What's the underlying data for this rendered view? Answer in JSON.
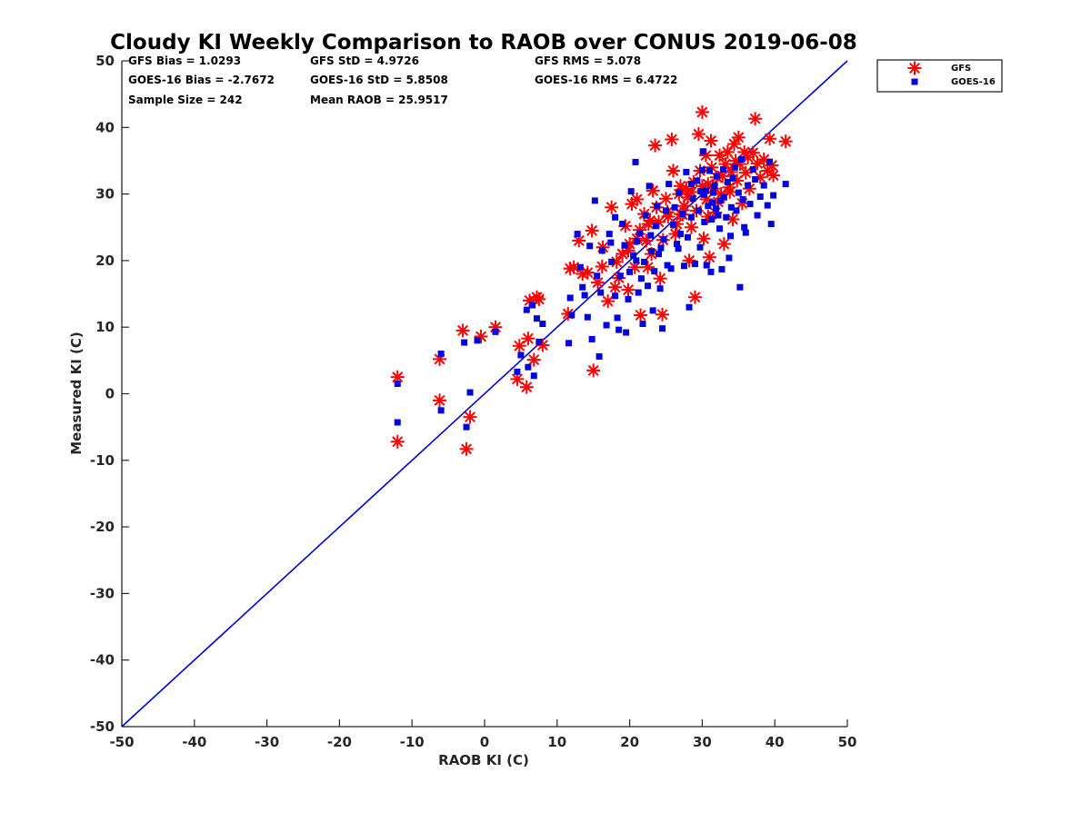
{
  "chart_data": {
    "type": "scatter",
    "title": "Cloudy KI Weekly Comparison to RAOB over CONUS 2019-06-08",
    "xlabel": "RAOB KI (C)",
    "ylabel": "Measured KI (C)",
    "xlim": [
      -50,
      50
    ],
    "ylim": [
      -50,
      50
    ],
    "xticks": [
      "-50",
      "-40",
      "-30",
      "-20",
      "-10",
      "0",
      "10",
      "20",
      "30",
      "40",
      "50"
    ],
    "yticks": [
      "-50",
      "-40",
      "-30",
      "-20",
      "-10",
      "0",
      "10",
      "20",
      "30",
      "40",
      "50"
    ],
    "grid": false,
    "legend_position": "top-right, outside plot",
    "stats": [
      "GFS Bias = 1.0293",
      "GFS StD = 4.9726",
      "GFS RMS = 5.078",
      "GOES-16 Bias = -2.7672",
      "GOES-16 StD = 5.8508",
      "GOES-16 RMS = 6.4722",
      "Sample Size = 242",
      "Mean RAOB = 25.9517"
    ],
    "reference_line": {
      "x": [
        -50,
        50
      ],
      "y": [
        -50,
        50
      ],
      "color": "#0000d6"
    },
    "series": [
      {
        "name": "GFS",
        "marker": "asterisk",
        "color": "#ff0000",
        "points": [
          [
            -12,
            2.5
          ],
          [
            -12,
            -7.2
          ],
          [
            -6.2,
            5.2
          ],
          [
            -6.2,
            -1
          ],
          [
            -3,
            9.5
          ],
          [
            -2.5,
            -8.3
          ],
          [
            -2,
            -3.5
          ],
          [
            -0.5,
            8.6
          ],
          [
            1.5,
            10
          ],
          [
            4.5,
            2.2
          ],
          [
            4.8,
            7.2
          ],
          [
            5.8,
            1
          ],
          [
            6,
            8.3
          ],
          [
            6.2,
            14
          ],
          [
            6.8,
            5.1
          ],
          [
            7.2,
            14.5
          ],
          [
            7.5,
            14.2
          ],
          [
            8,
            7.3
          ],
          [
            11.5,
            12
          ],
          [
            11.8,
            18.8
          ],
          [
            12.3,
            19
          ],
          [
            13,
            23
          ],
          [
            13.5,
            18
          ],
          [
            14.2,
            18.2
          ],
          [
            14.8,
            24.5
          ],
          [
            15,
            3.5
          ],
          [
            15.6,
            16.7
          ],
          [
            16.2,
            19.1
          ],
          [
            16.3,
            22
          ],
          [
            17,
            13.9
          ],
          [
            17.5,
            28
          ],
          [
            18,
            16
          ],
          [
            18.5,
            17.4
          ],
          [
            19,
            21
          ],
          [
            19.4,
            25.2
          ],
          [
            19.8,
            15.6
          ],
          [
            20,
            22.5
          ],
          [
            20.3,
            28.5
          ],
          [
            20.7,
            19
          ],
          [
            21,
            23.3
          ],
          [
            21,
            29.2
          ],
          [
            21.4,
            24.6
          ],
          [
            21.5,
            11.8
          ],
          [
            22,
            27
          ],
          [
            22.3,
            23
          ],
          [
            22.5,
            19
          ],
          [
            22.8,
            26
          ],
          [
            23,
            21
          ],
          [
            23.2,
            30.5
          ],
          [
            23.5,
            37.3
          ],
          [
            23.7,
            28
          ],
          [
            24,
            25.8
          ],
          [
            24.2,
            17.3
          ],
          [
            24.5,
            11.9
          ],
          [
            24.6,
            23.1
          ],
          [
            25,
            29.3
          ],
          [
            25.3,
            26.6
          ],
          [
            25.8,
            38.2
          ],
          [
            26,
            33.5
          ],
          [
            26.3,
            24
          ],
          [
            26.5,
            25.5
          ],
          [
            26.8,
            30
          ],
          [
            27,
            31.2
          ],
          [
            27.3,
            26.9
          ],
          [
            27.5,
            28.2
          ],
          [
            27.8,
            30.8
          ],
          [
            28,
            29.5
          ],
          [
            28.2,
            20
          ],
          [
            28.5,
            25
          ],
          [
            28.8,
            31.8
          ],
          [
            29,
            14.5
          ],
          [
            29.2,
            27.5
          ],
          [
            29.5,
            39
          ],
          [
            29.7,
            33.5
          ],
          [
            30,
            42.3
          ],
          [
            30,
            31.2
          ],
          [
            30.2,
            23.3
          ],
          [
            30.5,
            35.8
          ],
          [
            30.6,
            29.2
          ],
          [
            30.8,
            31.5
          ],
          [
            31,
            20.5
          ],
          [
            31.2,
            38
          ],
          [
            31.3,
            34
          ],
          [
            31.5,
            30.8
          ],
          [
            31.8,
            27.2
          ],
          [
            32,
            32.5
          ],
          [
            32.2,
            28.8
          ],
          [
            32.4,
            35.8
          ],
          [
            32.6,
            30
          ],
          [
            32.8,
            32.7
          ],
          [
            33,
            22.5
          ],
          [
            33.2,
            34.5
          ],
          [
            33.5,
            36.3
          ],
          [
            33.7,
            31
          ],
          [
            34,
            33.3
          ],
          [
            34.2,
            26.2
          ],
          [
            34.4,
            37.5
          ],
          [
            34.6,
            35
          ],
          [
            34.8,
            32
          ],
          [
            35,
            38.5
          ],
          [
            35.2,
            34.5
          ],
          [
            35.5,
            28.6
          ],
          [
            35.8,
            36.3
          ],
          [
            36,
            33.2
          ],
          [
            36.3,
            35.5
          ],
          [
            36.5,
            30.8
          ],
          [
            37,
            36.2
          ],
          [
            37.3,
            41.3
          ],
          [
            37.6,
            34.6
          ],
          [
            38,
            32.5
          ],
          [
            38.5,
            35.2
          ],
          [
            39,
            33.5
          ],
          [
            39.3,
            38.3
          ],
          [
            39.6,
            34.3
          ],
          [
            39.8,
            32.8
          ],
          [
            41.5,
            37.9
          ],
          [
            27,
            27
          ],
          [
            28.5,
            30.3
          ],
          [
            30.8,
            26.6
          ],
          [
            33.8,
            30.3
          ],
          [
            25.2,
            27.3
          ],
          [
            22.6,
            25.5
          ],
          [
            19.8,
            21.5
          ],
          [
            18.2,
            19.8
          ]
        ]
      },
      {
        "name": "GOES-16",
        "marker": "square",
        "color": "#0000e0",
        "points": [
          [
            -12,
            1.5
          ],
          [
            -12,
            -4.3
          ],
          [
            -6,
            6
          ],
          [
            -6,
            -2.5
          ],
          [
            -2.5,
            -5
          ],
          [
            -2,
            0.2
          ],
          [
            -1,
            8
          ],
          [
            1.5,
            9.3
          ],
          [
            -2.8,
            7.7
          ],
          [
            4.5,
            3.3
          ],
          [
            5,
            5.8
          ],
          [
            5.8,
            12.6
          ],
          [
            6,
            4
          ],
          [
            6.6,
            13.3
          ],
          [
            6.8,
            2.7
          ],
          [
            7.2,
            11.3
          ],
          [
            7.5,
            7.8
          ],
          [
            8,
            10.5
          ],
          [
            11.6,
            7.6
          ],
          [
            11.8,
            14.4
          ],
          [
            12,
            11.8
          ],
          [
            12.8,
            24
          ],
          [
            13.2,
            19
          ],
          [
            13.5,
            16
          ],
          [
            13.8,
            14.8
          ],
          [
            14.2,
            11.5
          ],
          [
            14.5,
            22.2
          ],
          [
            14.8,
            8.2
          ],
          [
            15.2,
            29
          ],
          [
            15.5,
            17.7
          ],
          [
            15.8,
            5.6
          ],
          [
            16,
            15.2
          ],
          [
            16.2,
            21.5
          ],
          [
            16.8,
            10.3
          ],
          [
            17.2,
            24
          ],
          [
            17.5,
            19.8
          ],
          [
            18,
            14.7
          ],
          [
            18,
            26.5
          ],
          [
            18.3,
            11.4
          ],
          [
            18.5,
            9.6
          ],
          [
            18.7,
            17.7
          ],
          [
            19,
            25.5
          ],
          [
            19.3,
            22.3
          ],
          [
            19.5,
            9.2
          ],
          [
            19.8,
            14.2
          ],
          [
            20,
            18.3
          ],
          [
            20.2,
            30.4
          ],
          [
            20.5,
            20.8
          ],
          [
            20.8,
            34.8
          ],
          [
            21,
            22.9
          ],
          [
            21.2,
            15.2
          ],
          [
            21.4,
            24.1
          ],
          [
            21.6,
            17.3
          ],
          [
            21.8,
            10.5
          ],
          [
            22,
            19.8
          ],
          [
            22.2,
            26.8
          ],
          [
            22.5,
            16.2
          ],
          [
            22.7,
            31.2
          ],
          [
            23,
            21.4
          ],
          [
            23.2,
            12.5
          ],
          [
            23.4,
            18.4
          ],
          [
            23.6,
            25.2
          ],
          [
            23.8,
            28.2
          ],
          [
            24,
            21
          ],
          [
            24.2,
            15.8
          ],
          [
            24.5,
            9.8
          ],
          [
            24.7,
            23.2
          ],
          [
            25,
            27.5
          ],
          [
            25.2,
            19.3
          ],
          [
            25.4,
            31.5
          ],
          [
            25.7,
            18.8
          ],
          [
            26,
            25.4
          ],
          [
            26.2,
            28
          ],
          [
            26.5,
            22.5
          ],
          [
            26.8,
            30.2
          ],
          [
            27,
            24
          ],
          [
            27.3,
            27
          ],
          [
            27.5,
            19.2
          ],
          [
            27.8,
            33.3
          ],
          [
            28,
            23.5
          ],
          [
            28.2,
            13
          ],
          [
            28.5,
            26.5
          ],
          [
            28.7,
            29.3
          ],
          [
            29,
            19.5
          ],
          [
            29.3,
            32
          ],
          [
            29.5,
            27.5
          ],
          [
            29.7,
            22
          ],
          [
            30,
            33.6
          ],
          [
            30.1,
            36.4
          ],
          [
            30.3,
            25.8
          ],
          [
            30.5,
            30.5
          ],
          [
            30.6,
            19.3
          ],
          [
            30.8,
            28.2
          ],
          [
            31,
            33.5
          ],
          [
            31.2,
            18.3
          ],
          [
            31.3,
            26.2
          ],
          [
            31.5,
            30.2
          ],
          [
            31.7,
            31.2
          ],
          [
            31.9,
            27.8
          ],
          [
            32,
            32.7
          ],
          [
            32.2,
            26.8
          ],
          [
            32.4,
            24.8
          ],
          [
            32.5,
            29
          ],
          [
            32.7,
            18.7
          ],
          [
            32.9,
            33.7
          ],
          [
            33,
            29.5
          ],
          [
            33.3,
            26.5
          ],
          [
            33.5,
            31.8
          ],
          [
            33.7,
            20.4
          ],
          [
            33.9,
            23.7
          ],
          [
            34,
            28
          ],
          [
            34.2,
            32.4
          ],
          [
            34.5,
            34
          ],
          [
            34.7,
            27.5
          ],
          [
            35,
            30.2
          ],
          [
            35.2,
            16
          ],
          [
            35.4,
            35.2
          ],
          [
            35.6,
            29.2
          ],
          [
            35.8,
            25
          ],
          [
            36,
            24.2
          ],
          [
            36.3,
            31.3
          ],
          [
            36.6,
            28.5
          ],
          [
            37,
            33.7
          ],
          [
            37.3,
            32.2
          ],
          [
            37.6,
            26.8
          ],
          [
            38,
            29.6
          ],
          [
            38.5,
            31.3
          ],
          [
            39,
            28.3
          ],
          [
            39.3,
            34.8
          ],
          [
            39.5,
            25.5
          ],
          [
            39.8,
            29.8
          ],
          [
            41.5,
            31.5
          ],
          [
            28.5,
            31.5
          ],
          [
            30.2,
            29.9
          ],
          [
            29.8,
            30.4
          ],
          [
            31.4,
            28.7
          ],
          [
            26.7,
            21.8
          ],
          [
            24.3,
            21.9
          ],
          [
            22.9,
            23.8
          ],
          [
            20.9,
            20
          ],
          [
            17.4,
            22.7
          ]
        ]
      }
    ]
  }
}
